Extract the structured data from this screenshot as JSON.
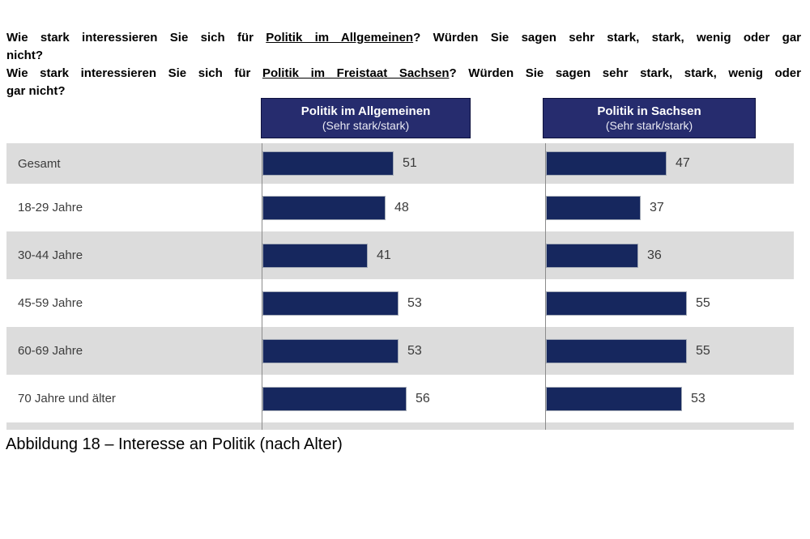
{
  "questions": [
    {
      "lines": [
        [
          {
            "text": "Wie stark interessieren Sie sich für ",
            "underline": false
          },
          {
            "text": "Politik im Allgemeinen",
            "underline": true
          },
          {
            "text": "? Würden Sie sagen sehr stark, stark, wenig oder gar",
            "underline": false
          }
        ],
        [
          {
            "text": "nicht?",
            "underline": false
          }
        ]
      ]
    },
    {
      "lines": [
        [
          {
            "text": "Wie stark interessieren Sie sich für ",
            "underline": false
          },
          {
            "text": "Politik im Freistaat Sachsen",
            "underline": true
          },
          {
            "text": "? Würden Sie sagen sehr stark, stark, wenig oder",
            "underline": false
          }
        ],
        [
          {
            "text": "gar nicht?",
            "underline": false
          }
        ]
      ]
    }
  ],
  "columns": [
    {
      "title": "Politik im Allgemeinen",
      "subtitle": "(Sehr stark/stark)"
    },
    {
      "title": "Politik in Sachsen",
      "subtitle": "(Sehr stark/stark)"
    }
  ],
  "caption": "Abbildung 18 – Interesse an Politik (nach Alter)",
  "colors": {
    "bar": "#16275e",
    "header_bg": "#262c6e",
    "header_text": "#ffffff",
    "row_alt": "#dcdcdc",
    "axis_line": "#8c8c8c"
  },
  "chart_data": {
    "type": "bar",
    "orientation": "horizontal",
    "categories": [
      "Gesamt",
      "18-29 Jahre",
      "30-44 Jahre",
      "45-59 Jahre",
      "60-69 Jahre",
      "70 Jahre und älter"
    ],
    "series": [
      {
        "name": "Politik im Allgemeinen (Sehr stark/stark)",
        "values": [
          51,
          48,
          41,
          53,
          53,
          56
        ]
      },
      {
        "name": "Politik in Sachsen (Sehr stark/stark)",
        "values": [
          47,
          37,
          36,
          55,
          55,
          53
        ]
      }
    ],
    "value_range": [
      0,
      100
    ],
    "data_labels": true,
    "legend": "column headers above chart",
    "grid": false,
    "row_shading": "alternating gray/white starting gray"
  }
}
